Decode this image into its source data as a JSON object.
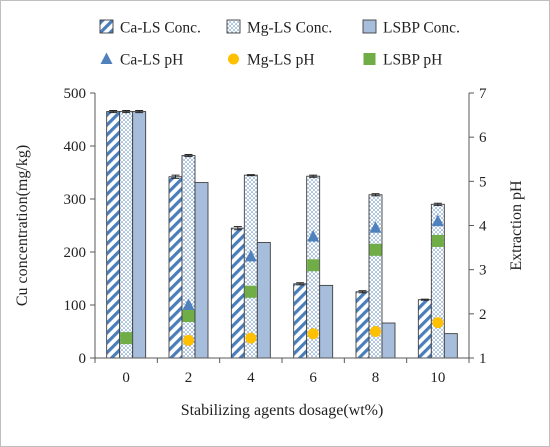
{
  "chart_data": {
    "type": "bar",
    "categories": [
      "0",
      "2",
      "4",
      "6",
      "8",
      "10"
    ],
    "xlabel": "Stabilizing agents dosage(wt%)",
    "ylabel": "Cu concentration(mg/kg)",
    "y2label": "Extraction pH",
    "ylim": [
      0,
      500
    ],
    "y2lim": [
      1,
      7
    ],
    "yticks": [
      "0",
      "100",
      "200",
      "300",
      "400",
      "500"
    ],
    "y2ticks": [
      "1",
      "2",
      "3",
      "4",
      "5",
      "6",
      "7"
    ],
    "legend_position": "top",
    "bar_series": [
      {
        "name": "Ca-LS Conc.",
        "pattern": "diagonal-stripes",
        "color": "#4a7ebb",
        "values": [
          465,
          342,
          245,
          140,
          125,
          110
        ],
        "errors": [
          2,
          3,
          3,
          2,
          2,
          1
        ]
      },
      {
        "name": "Mg-LS Conc.",
        "pattern": "dots",
        "color": "#4a7ebb",
        "values": [
          465,
          382,
          345,
          343,
          308,
          290
        ],
        "errors": [
          2,
          2,
          1,
          2,
          2,
          2
        ]
      },
      {
        "name": "LSBP Conc.",
        "pattern": "solid",
        "color": "#a6bddb",
        "values": [
          465,
          331,
          218,
          137,
          66,
          46
        ],
        "errors": [
          2,
          0,
          0,
          0,
          0,
          0
        ]
      }
    ],
    "ph_series": [
      {
        "name": "Ca-LS pH",
        "marker": "triangle",
        "color": "#4f81bd",
        "values": [
          null,
          2.2,
          3.3,
          3.75,
          3.95,
          4.1
        ]
      },
      {
        "name": "Mg-LS pH",
        "marker": "circle",
        "color": "#ffc000",
        "values": [
          null,
          1.4,
          1.45,
          1.55,
          1.6,
          1.8
        ]
      },
      {
        "name": "LSBP pH",
        "marker": "square",
        "color": "#70ad47",
        "values": [
          1.45,
          1.95,
          2.5,
          3.1,
          3.45,
          3.65
        ]
      }
    ],
    "grid": false
  }
}
